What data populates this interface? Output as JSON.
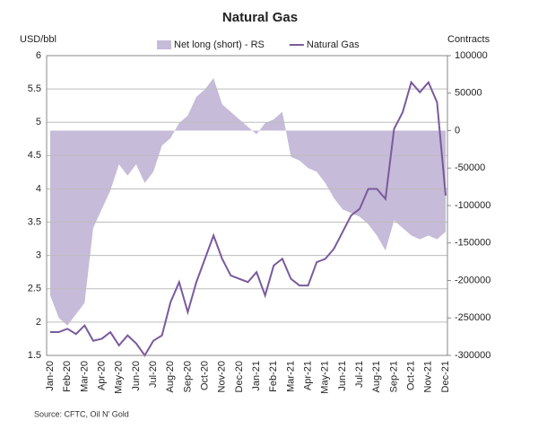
{
  "chart_data": {
    "type": "combo",
    "title": "Natural Gas",
    "y_label": "USD/bbl",
    "y2_label": "Contracts",
    "source": "Source: CFTC, Oil N' Gold",
    "categories": [
      "Jan-20",
      null,
      "Feb-20",
      null,
      "Mar-20",
      null,
      "Apr-20",
      null,
      "May-20",
      null,
      "Jun-20",
      null,
      "Jul-20",
      null,
      "Aug-20",
      null,
      "Sep-20",
      null,
      "Oct-20",
      null,
      "Nov-20",
      null,
      "Dec-20",
      null,
      "Jan-21",
      null,
      "Feb-21",
      null,
      "Mar-21",
      null,
      "Apr-21",
      null,
      "May-21",
      null,
      "Jun-21",
      null,
      "Jul-21",
      null,
      "Aug-21",
      null,
      "Sep-21",
      null,
      "Oct-21",
      null,
      "Nov-21",
      null,
      "Dec-21"
    ],
    "series": [
      {
        "name": "Net long (short) - RS",
        "type": "area",
        "axis": "y2",
        "color": "#c6bbd9",
        "values": [
          -220000,
          -250000,
          -260000,
          -245000,
          -230000,
          -130000,
          -105000,
          -80000,
          -45000,
          -60000,
          -45000,
          -70000,
          -55000,
          -20000,
          -10000,
          10000,
          20000,
          45000,
          55000,
          70000,
          35000,
          25000,
          15000,
          5000,
          -5000,
          10000,
          15000,
          25000,
          -35000,
          -40000,
          -50000,
          -55000,
          -70000,
          -90000,
          -105000,
          -110000,
          -115000,
          -125000,
          -140000,
          -160000,
          -120000,
          -130000,
          -140000,
          -145000,
          -140000,
          -145000,
          -135000
        ]
      },
      {
        "name": "Natural Gas",
        "type": "line",
        "color": "#7a5a9c",
        "values": [
          1.85,
          1.85,
          1.9,
          1.82,
          1.95,
          1.72,
          1.75,
          1.85,
          1.65,
          1.8,
          1.68,
          1.5,
          1.72,
          1.8,
          2.3,
          2.6,
          2.15,
          2.6,
          2.95,
          3.3,
          2.95,
          2.7,
          2.65,
          2.6,
          2.75,
          2.4,
          2.85,
          2.95,
          2.65,
          2.55,
          2.55,
          2.9,
          2.95,
          3.1,
          3.35,
          3.6,
          3.7,
          4.0,
          4.0,
          3.85,
          4.9,
          5.15,
          5.6,
          5.45,
          5.6,
          5.3,
          3.9
        ]
      }
    ],
    "ylim": [
      1.5,
      6
    ],
    "yticks": [
      1.5,
      2,
      2.5,
      3,
      3.5,
      4,
      4.5,
      5,
      5.5,
      6
    ],
    "y2lim": [
      -300000,
      100000
    ],
    "y2ticks": [
      -300000,
      -250000,
      -200000,
      -150000,
      -100000,
      -50000,
      0,
      50000,
      100000
    ],
    "grid": true,
    "legend": "top"
  }
}
